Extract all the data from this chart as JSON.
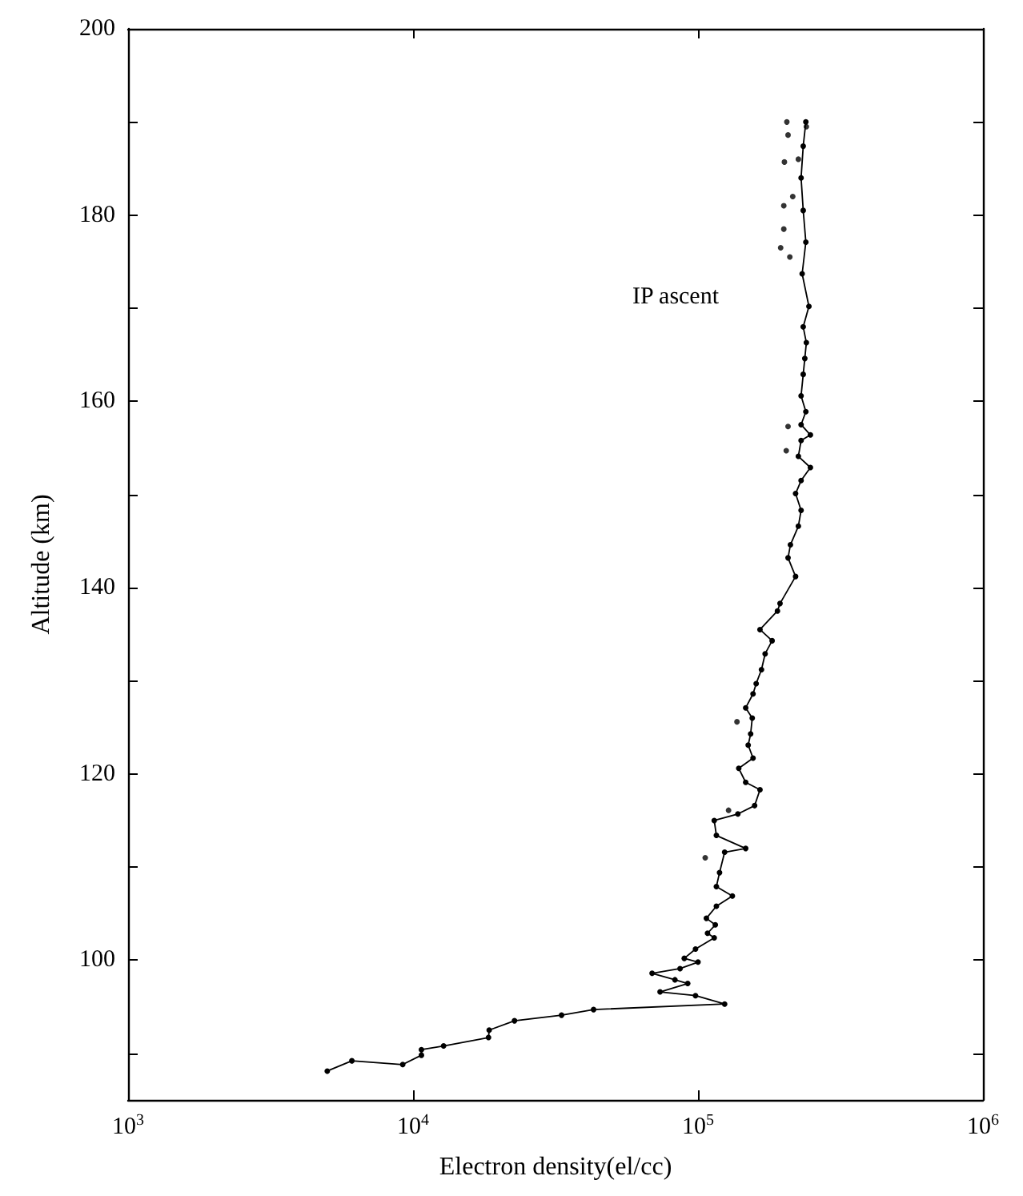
{
  "chart_data": {
    "type": "line",
    "xlabel": "Electron density(el/cc)",
    "ylabel": "Altitude (km)",
    "annotations": [
      "IP ascent"
    ],
    "log": "x",
    "grid": false,
    "marker": "circle",
    "line_style": "solid",
    "xlim": [
      1000,
      1000000
    ],
    "ylim": [
      85,
      200
    ],
    "xticks": [
      {
        "value": 1000,
        "label": "10$^{3}$"
      },
      {
        "value": 10000,
        "label": "10$^{4}$"
      },
      {
        "value": 100000,
        "label": "10$^{5}$"
      },
      {
        "value": 1000000,
        "label": "10$^{6}$"
      }
    ],
    "yticks": [
      {
        "value": 90,
        "label": null
      },
      100,
      {
        "value": 110,
        "label": null
      },
      120,
      {
        "value": 130,
        "label": null
      },
      140,
      {
        "value": 150,
        "label": null
      },
      160,
      {
        "value": 170,
        "label": null
      },
      180,
      {
        "value": 190,
        "label": null
      },
      200
    ],
    "series": [
      {
        "color": "#000000",
        "x": [
          5000,
          6100,
          9200,
          10700,
          10700,
          12800,
          18400,
          18500,
          22700,
          33200,
          43000,
          124000,
          98000,
          73600,
          92000,
          83000,
          69000,
          86500,
          100000,
          89500,
          98000,
          114000,
          108000,
          115000,
          107000,
          116000,
          132000,
          116000,
          119000,
          124000,
          147000,
          116000,
          114000,
          138000,
          158000,
          165000,
          147000,
          139000,
          156000,
          150000,
          153000,
          155000,
          147000,
          156000,
          160000,
          167000,
          172000,
          182000,
          165000,
          190000,
          194000,
          220000,
          207000,
          211000,
          225000,
          230000,
          220000,
          230000,
          248000,
          225000,
          230000,
          248000,
          230000,
          239000,
          230000,
          234000,
          237000,
          240000,
          234000,
          245000,
          232000,
          239000,
          234000,
          230000,
          234000,
          239000
        ],
        "values": [
          88.1,
          89.2,
          88.8,
          89.8,
          90.4,
          90.8,
          91.7,
          92.5,
          93.5,
          94.1,
          94.7,
          95.3,
          96.2,
          96.6,
          97.5,
          97.9,
          98.6,
          99.1,
          99.8,
          100.2,
          101.2,
          102.4,
          102.9,
          103.8,
          104.5,
          105.8,
          106.9,
          107.9,
          109.4,
          111.6,
          112.0,
          113.4,
          115.0,
          115.7,
          116.6,
          118.3,
          119.1,
          120.6,
          121.7,
          123.1,
          124.3,
          126.0,
          127.1,
          128.6,
          129.7,
          131.2,
          132.9,
          134.3,
          135.5,
          137.5,
          138.3,
          141.2,
          143.2,
          144.6,
          146.6,
          148.3,
          150.1,
          151.5,
          152.9,
          154.1,
          155.8,
          156.4,
          157.5,
          158.9,
          160.6,
          162.9,
          164.6,
          166.3,
          168.0,
          170.2,
          173.7,
          177.1,
          180.5,
          184.0,
          187.4,
          190.0
        ]
      },
      {
        "type": "scatter",
        "color": "#000000",
        "x": [
          106000,
          128000,
          137000,
          195000,
          207000,
          201000,
          207000,
          204000,
          200000,
          215000,
          225000,
          200000,
          240000,
          205000,
          210000
        ],
        "values": [
          111.0,
          116.1,
          125.6,
          176.5,
          188.6,
          185.7,
          157.3,
          154.7,
          178.5,
          182.0,
          186.0,
          181.0,
          189.5,
          190.0,
          175.5
        ]
      }
    ]
  }
}
